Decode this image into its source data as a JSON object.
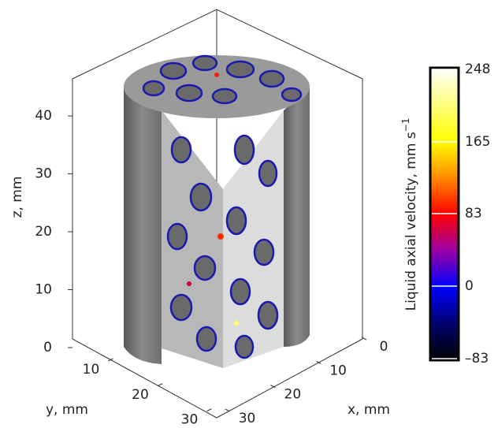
{
  "chart_data": {
    "type": "volume",
    "zlabel": "z, mm",
    "ylabel": "y, mm",
    "xlabel": "x, mm",
    "zlim": [
      0,
      46
    ],
    "zticks": [
      0,
      10,
      20,
      30,
      40
    ],
    "ylim": [
      0,
      32
    ],
    "yticks": [
      10,
      20,
      30
    ],
    "xlim": [
      0,
      32
    ],
    "xticks": [
      0,
      10,
      20,
      30
    ],
    "colorbar": {
      "label": "Liquid axial velocity, mm s",
      "label_superscript": "−1",
      "lim": [
        -83,
        248
      ],
      "ticks": [
        {
          "value": -83,
          "label": "–83"
        },
        0,
        83,
        165,
        248
      ]
    }
  }
}
